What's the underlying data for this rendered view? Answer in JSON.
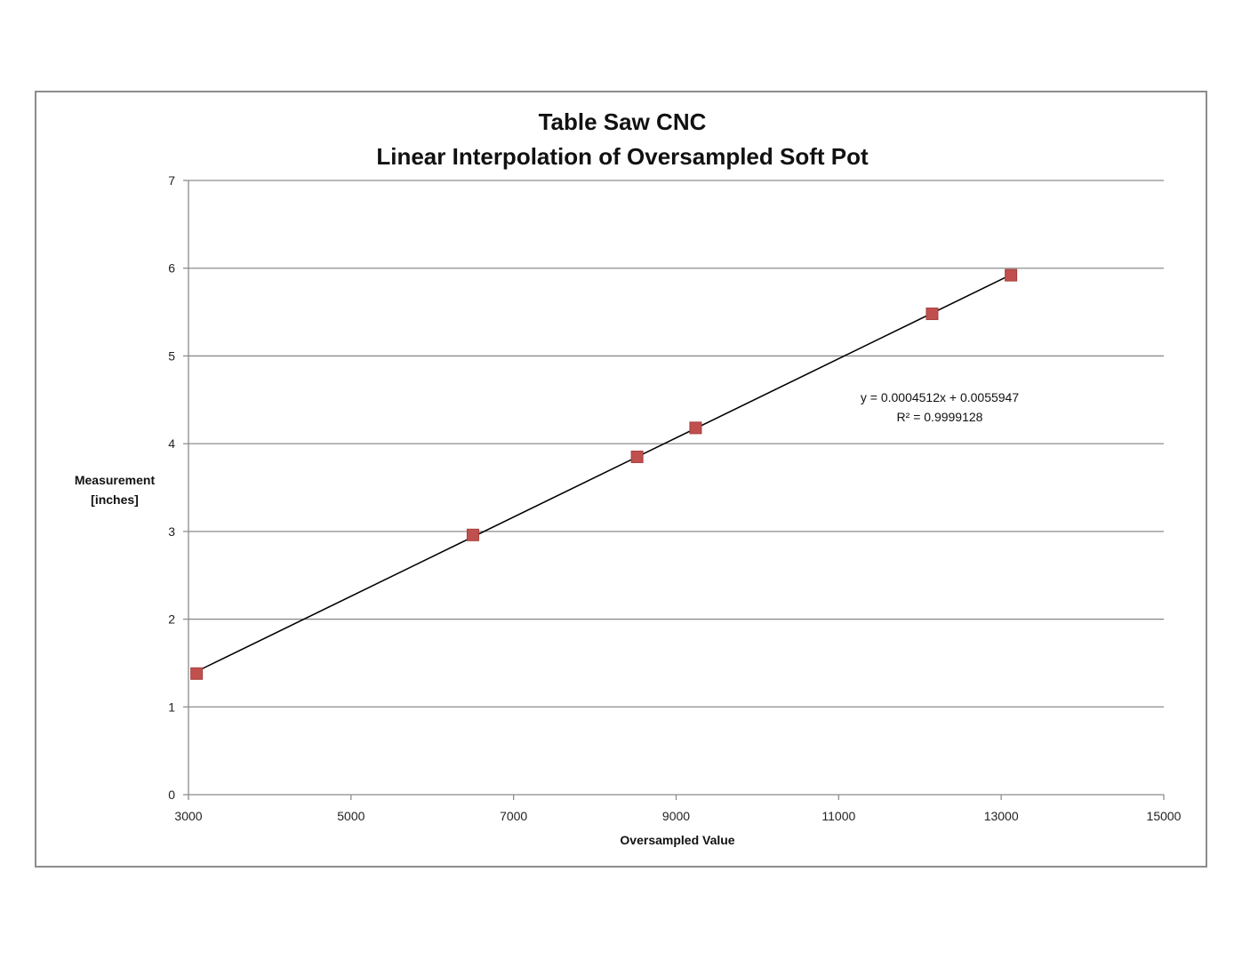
{
  "chart_data": {
    "type": "scatter",
    "title_lines": [
      "Table Saw CNC",
      "Linear Interpolation of Oversampled Soft Pot"
    ],
    "xlabel": "Oversampled Value",
    "ylabel_lines": [
      "Measurement",
      "[inches]"
    ],
    "xlim": [
      3000,
      15000
    ],
    "ylim": [
      0,
      7
    ],
    "x_ticks": [
      3000,
      5000,
      7000,
      9000,
      11000,
      13000,
      15000
    ],
    "y_ticks": [
      0,
      1,
      2,
      3,
      4,
      5,
      6,
      7
    ],
    "grid": "horizontal",
    "series": [
      {
        "points": [
          {
            "x": 3100,
            "y": 1.38
          },
          {
            "x": 6500,
            "y": 2.96
          },
          {
            "x": 8520,
            "y": 3.85
          },
          {
            "x": 9240,
            "y": 4.18
          },
          {
            "x": 12150,
            "y": 5.48
          },
          {
            "x": 13120,
            "y": 5.92
          }
        ],
        "marker_color": "#c0504d"
      }
    ],
    "trendline": {
      "slope": 0.0004512,
      "intercept": 0.0055947,
      "x_range": [
        3100,
        13120
      ],
      "equation_text": "y = 0.0004512x + 0.0055947",
      "r2_text": "R² = 0.9999128"
    }
  }
}
